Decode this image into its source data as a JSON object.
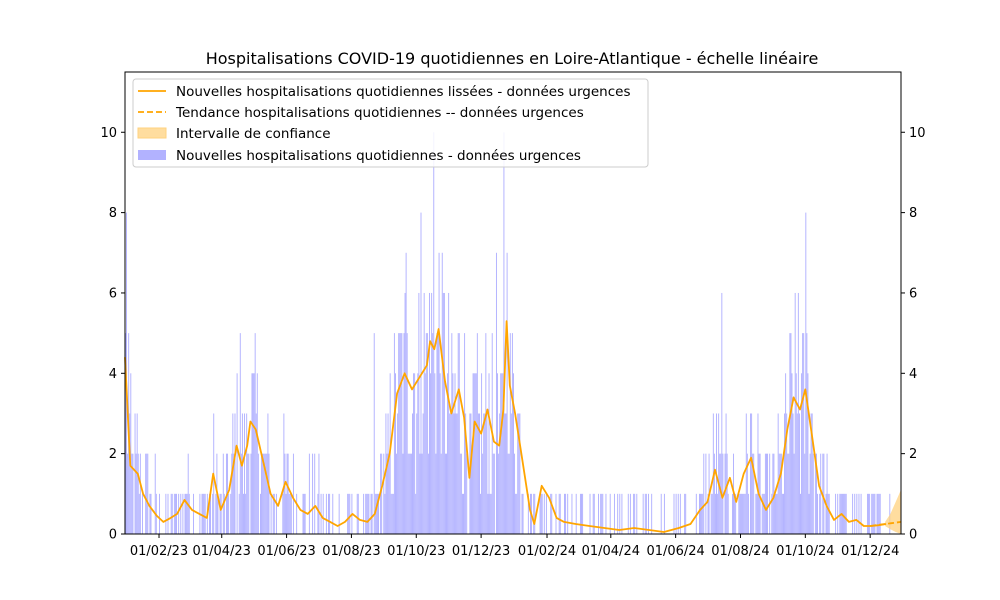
{
  "chart_data": {
    "type": "bar+line",
    "title": "Hospitalisations COVID-19 quotidiennes en Loire-Atlantique - échelle linéaire",
    "xlabel": "",
    "ylabel": "",
    "ylim": [
      0,
      11.5
    ],
    "y_ticks": [
      0,
      2,
      4,
      6,
      8,
      10
    ],
    "x_tick_labels": [
      "01/02/23",
      "01/04/23",
      "01/06/23",
      "01/08/23",
      "01/10/23",
      "01/12/23",
      "01/02/24",
      "01/04/24",
      "01/06/24",
      "01/08/24",
      "01/10/24",
      "01/12/24"
    ],
    "x_tick_dates": [
      "2023-02-01",
      "2023-04-01",
      "2023-06-01",
      "2023-08-01",
      "2023-10-01",
      "2023-12-01",
      "2024-02-01",
      "2024-04-01",
      "2024-06-01",
      "2024-08-01",
      "2024-10-01",
      "2024-12-01"
    ],
    "x_range": [
      "2022-12-31",
      "2024-12-30"
    ],
    "legend_position": "upper-left",
    "grid": false,
    "colors": {
      "smoothed": "#FFA500",
      "trend": "#FFA500",
      "confidence": "#FFD27F",
      "bars": "#B2B2FF"
    },
    "legend": [
      {
        "label": "Nouvelles hospitalisations quotidiennes lissées - données urgences",
        "kind": "line"
      },
      {
        "label": "Tendance hospitalisations quotidiennes -- données urgences",
        "kind": "dashed"
      },
      {
        "label": "Intervalle de confiance",
        "kind": "patch-orange"
      },
      {
        "label": "Nouvelles hospitalisations quotidiennes - données urgences",
        "kind": "patch-blue"
      }
    ],
    "smoothed_series": {
      "name": "Nouvelles hospitalisations quotidiennes lissées - données urgences",
      "points": [
        [
          "2022-12-31",
          4.4
        ],
        [
          "2023-01-05",
          1.7
        ],
        [
          "2023-01-12",
          1.5
        ],
        [
          "2023-01-17",
          1.0
        ],
        [
          "2023-01-23",
          0.7
        ],
        [
          "2023-01-30",
          0.45
        ],
        [
          "2023-02-05",
          0.3
        ],
        [
          "2023-02-12",
          0.4
        ],
        [
          "2023-02-18",
          0.5
        ],
        [
          "2023-02-25",
          0.85
        ],
        [
          "2023-03-04",
          0.6
        ],
        [
          "2023-03-11",
          0.5
        ],
        [
          "2023-03-18",
          0.4
        ],
        [
          "2023-03-24",
          1.5
        ],
        [
          "2023-03-31",
          0.6
        ],
        [
          "2023-04-08",
          1.1
        ],
        [
          "2023-04-15",
          2.2
        ],
        [
          "2023-04-20",
          1.7
        ],
        [
          "2023-04-25",
          2.2
        ],
        [
          "2023-04-28",
          2.8
        ],
        [
          "2023-05-03",
          2.6
        ],
        [
          "2023-05-10",
          1.8
        ],
        [
          "2023-05-17",
          1.0
        ],
        [
          "2023-05-24",
          0.7
        ],
        [
          "2023-05-31",
          1.3
        ],
        [
          "2023-06-07",
          0.9
        ],
        [
          "2023-06-14",
          0.6
        ],
        [
          "2023-06-21",
          0.5
        ],
        [
          "2023-06-28",
          0.7
        ],
        [
          "2023-07-05",
          0.4
        ],
        [
          "2023-07-12",
          0.3
        ],
        [
          "2023-07-19",
          0.2
        ],
        [
          "2023-07-26",
          0.3
        ],
        [
          "2023-08-02",
          0.5
        ],
        [
          "2023-08-09",
          0.35
        ],
        [
          "2023-08-16",
          0.3
        ],
        [
          "2023-08-23",
          0.5
        ],
        [
          "2023-08-30",
          1.2
        ],
        [
          "2023-09-06",
          2.0
        ],
        [
          "2023-09-13",
          3.5
        ],
        [
          "2023-09-20",
          4.0
        ],
        [
          "2023-09-27",
          3.6
        ],
        [
          "2023-10-04",
          3.9
        ],
        [
          "2023-10-11",
          4.2
        ],
        [
          "2023-10-14",
          4.8
        ],
        [
          "2023-10-18",
          4.6
        ],
        [
          "2023-10-22",
          5.1
        ],
        [
          "2023-10-28",
          3.8
        ],
        [
          "2023-11-03",
          3.0
        ],
        [
          "2023-11-10",
          3.6
        ],
        [
          "2023-11-15",
          2.9
        ],
        [
          "2023-11-20",
          1.4
        ],
        [
          "2023-11-25",
          2.8
        ],
        [
          "2023-12-01",
          2.5
        ],
        [
          "2023-12-07",
          3.1
        ],
        [
          "2023-12-13",
          2.3
        ],
        [
          "2023-12-18",
          2.2
        ],
        [
          "2023-12-22",
          3.1
        ],
        [
          "2023-12-25",
          5.3
        ],
        [
          "2023-12-28",
          3.7
        ],
        [
          "2024-01-02",
          3.0
        ],
        [
          "2024-01-09",
          1.8
        ],
        [
          "2024-01-16",
          0.6
        ],
        [
          "2024-01-20",
          0.25
        ],
        [
          "2024-01-27",
          1.2
        ],
        [
          "2024-02-03",
          0.9
        ],
        [
          "2024-02-10",
          0.4
        ],
        [
          "2024-02-17",
          0.3
        ],
        [
          "2024-02-28",
          0.25
        ],
        [
          "2024-03-12",
          0.2
        ],
        [
          "2024-03-26",
          0.15
        ],
        [
          "2024-04-09",
          0.1
        ],
        [
          "2024-04-23",
          0.15
        ],
        [
          "2024-05-07",
          0.1
        ],
        [
          "2024-05-21",
          0.05
        ],
        [
          "2024-06-04",
          0.15
        ],
        [
          "2024-06-15",
          0.25
        ],
        [
          "2024-06-24",
          0.6
        ],
        [
          "2024-07-01",
          0.8
        ],
        [
          "2024-07-08",
          1.6
        ],
        [
          "2024-07-15",
          0.9
        ],
        [
          "2024-07-22",
          1.4
        ],
        [
          "2024-07-28",
          0.8
        ],
        [
          "2024-08-04",
          1.5
        ],
        [
          "2024-08-11",
          1.9
        ],
        [
          "2024-08-18",
          1.0
        ],
        [
          "2024-08-25",
          0.6
        ],
        [
          "2024-09-01",
          0.9
        ],
        [
          "2024-09-08",
          1.5
        ],
        [
          "2024-09-14",
          2.6
        ],
        [
          "2024-09-20",
          3.4
        ],
        [
          "2024-09-26",
          3.1
        ],
        [
          "2024-10-01",
          3.6
        ],
        [
          "2024-10-07",
          2.5
        ],
        [
          "2024-10-14",
          1.2
        ],
        [
          "2024-10-21",
          0.7
        ],
        [
          "2024-10-28",
          0.35
        ],
        [
          "2024-11-04",
          0.5
        ],
        [
          "2024-11-11",
          0.3
        ],
        [
          "2024-11-18",
          0.35
        ],
        [
          "2024-11-25",
          0.2
        ],
        [
          "2024-12-02",
          0.2
        ],
        [
          "2024-12-09",
          0.22
        ],
        [
          "2024-12-16",
          0.25
        ]
      ]
    },
    "trend_series": {
      "name": "Tendance hospitalisations quotidiennes -- données urgences",
      "points": [
        [
          "2024-12-01",
          0.2
        ],
        [
          "2024-12-12",
          0.24
        ],
        [
          "2024-12-21",
          0.27
        ],
        [
          "2024-12-30",
          0.3
        ]
      ]
    },
    "confidence_interval": {
      "name": "Intervalle de confiance",
      "upper": [
        [
          "2024-12-15",
          0.3
        ],
        [
          "2024-12-20",
          0.5
        ],
        [
          "2024-12-25",
          0.8
        ],
        [
          "2024-12-30",
          1.1
        ]
      ],
      "lower": [
        [
          "2024-12-15",
          0.2
        ],
        [
          "2024-12-20",
          0.12
        ],
        [
          "2024-12-25",
          0.05
        ],
        [
          "2024-12-30",
          0.0
        ]
      ]
    },
    "bar_series_segments": [
      {
        "from": "2022-12-31",
        "to": "2023-01-20",
        "peak": 5
      },
      {
        "from": "2023-01-20",
        "to": "2023-03-20",
        "peak": 2
      },
      {
        "from": "2023-03-20",
        "to": "2023-05-31",
        "peak": 5
      },
      {
        "from": "2023-05-31",
        "to": "2023-08-20",
        "peak": 2
      },
      {
        "from": "2023-08-20",
        "to": "2023-09-20",
        "peak": 5
      },
      {
        "from": "2023-09-20",
        "to": "2023-11-20",
        "peak": 10
      },
      {
        "from": "2023-11-20",
        "to": "2024-01-10",
        "peak": 10
      },
      {
        "from": "2024-01-10",
        "to": "2024-06-10",
        "peak": 1
      },
      {
        "from": "2024-06-10",
        "to": "2024-08-31",
        "peak": 6
      },
      {
        "from": "2024-08-31",
        "to": "2024-10-20",
        "peak": 8
      },
      {
        "from": "2024-10-20",
        "to": "2024-12-20",
        "peak": 2
      }
    ],
    "bar_highlights": [
      [
        "2023-01-01",
        8
      ],
      [
        "2023-01-03",
        5
      ],
      [
        "2023-10-17",
        10
      ],
      [
        "2023-12-15",
        7
      ],
      [
        "2023-12-22",
        10
      ],
      [
        "2023-10-05",
        8
      ],
      [
        "2023-09-21",
        7
      ],
      [
        "2024-07-14",
        6
      ],
      [
        "2024-10-01",
        8
      ],
      [
        "2024-09-24",
        6
      ],
      [
        "2023-04-18",
        5
      ],
      [
        "2023-08-22",
        5
      ]
    ]
  }
}
